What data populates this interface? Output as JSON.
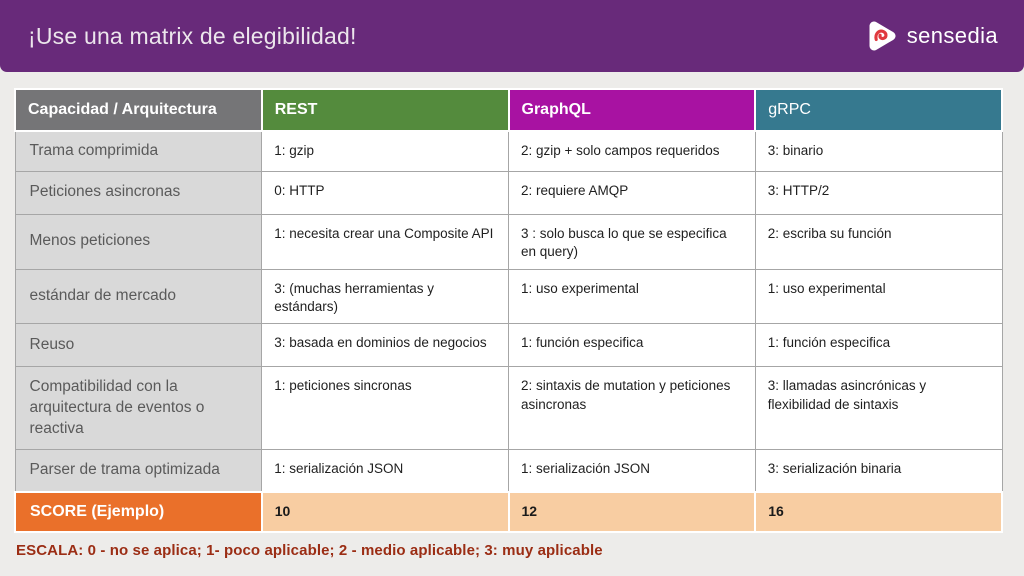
{
  "slide": {
    "title": "¡Use una matrix de elegibilidad!",
    "logo": {
      "text": "sensedia",
      "icon": "sensedia-pick-icon"
    },
    "footer_note": "ESCALA: 0 - no se aplica; 1- poco aplicable; 2 - medio aplicable; 3: muy aplicable"
  },
  "colors": {
    "title_bar_bg": "#682A7A",
    "title_text": "#ECE6EC",
    "header_capacidad_bg": "#757577",
    "header_rest_bg": "#548B3D",
    "header_graphql_bg": "#A812A2",
    "header_grpc_bg": "#36798F",
    "row_label_bg": "#D9D9D9",
    "score_label_bg": "#EA702A",
    "score_cell_bg": "#F8CDA2",
    "footer_text": "#9B2D14",
    "logo_accent": "#E0393E"
  },
  "table": {
    "columns": [
      {
        "label": "Capacidad / Arquitectura",
        "color": "#757577"
      },
      {
        "label": "REST",
        "color": "#548B3D"
      },
      {
        "label": "GraphQL",
        "color": "#A812A2"
      },
      {
        "label": "gRPC",
        "color": "#36798F"
      }
    ],
    "rows": [
      {
        "label": "Trama comprimida",
        "rest": "1: gzip",
        "graphql": "2: gzip + solo campos requeridos",
        "grpc": "3: binario"
      },
      {
        "label": "Peticiones asincronas",
        "rest": "0: HTTP",
        "graphql": "2: requiere AMQP",
        "grpc": "3: HTTP/2"
      },
      {
        "label": "Menos peticiones",
        "rest": "1: necesita crear una Composite API",
        "graphql": "3 : solo busca lo que se especifica en query)",
        "grpc": "2: escriba su función"
      },
      {
        "label": "estándar de mercado",
        "rest": "3: (muchas herramientas y estándars)",
        "graphql": "1: uso experimental",
        "grpc": "1: uso experimental"
      },
      {
        "label": "Reuso",
        "rest": "3: basada en dominios de negocios",
        "graphql": "1: función especifica",
        "grpc": "1: función especifica"
      },
      {
        "label": "Compatibilidad con la arquitectura de eventos o reactiva",
        "rest": "1: peticiones sincronas",
        "graphql": "2: sintaxis de mutation y peticiones asincronas",
        "grpc": "3: llamadas asincrónicas y flexibilidad de sintaxis"
      },
      {
        "label": "Parser de trama optimizada",
        "rest": "1: serialización JSON",
        "graphql": "1: serialización JSON",
        "grpc": "3: serialización binaria"
      }
    ],
    "score_row": {
      "label": "SCORE (Ejemplo)",
      "rest": "10",
      "graphql": "12",
      "grpc": "16"
    }
  }
}
